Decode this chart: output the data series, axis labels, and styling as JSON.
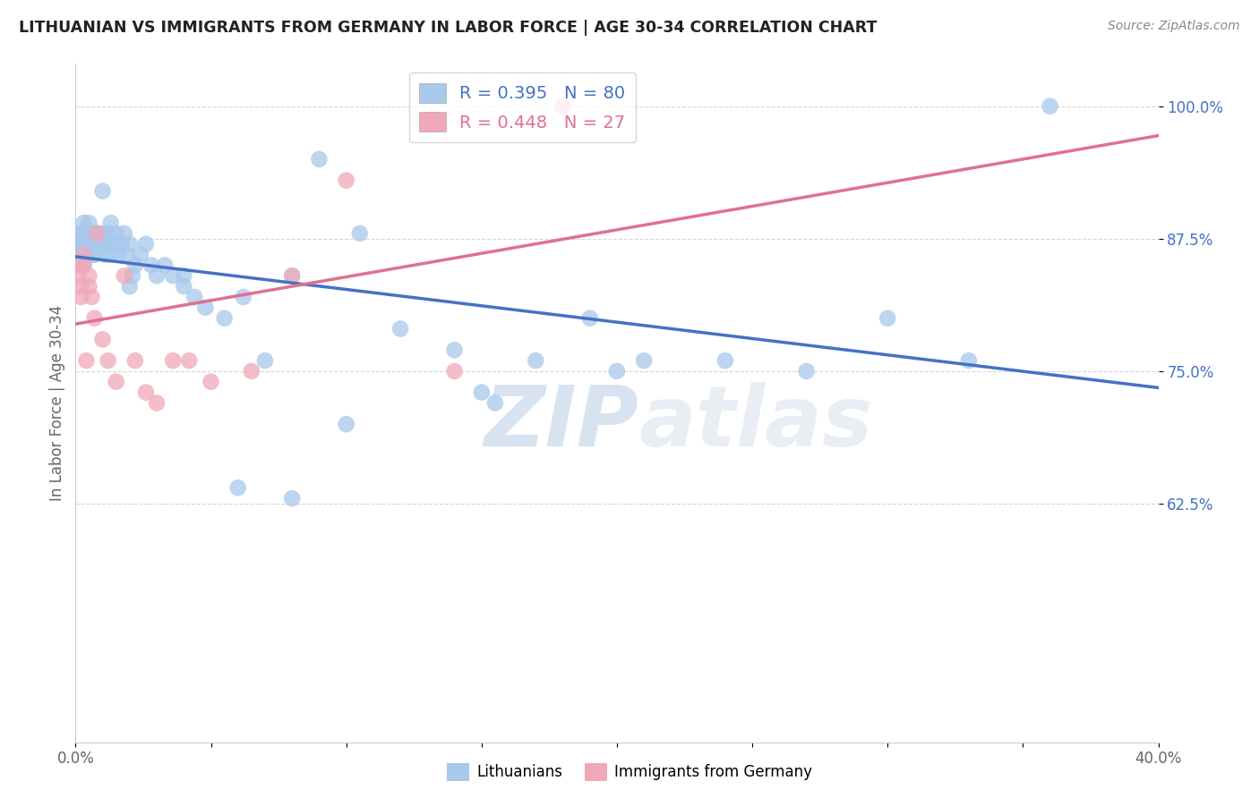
{
  "title": "LITHUANIAN VS IMMIGRANTS FROM GERMANY IN LABOR FORCE | AGE 30-34 CORRELATION CHART",
  "source": "Source: ZipAtlas.com",
  "ylabel": "In Labor Force | Age 30-34",
  "xlim": [
    0.0,
    0.4
  ],
  "ylim": [
    0.4,
    1.04
  ],
  "yticks": [
    0.625,
    0.75,
    0.875,
    1.0
  ],
  "yticklabels": [
    "62.5%",
    "75.0%",
    "87.5%",
    "100.0%"
  ],
  "xtick_show": [
    0.0,
    0.4
  ],
  "xticklabels_show": [
    "0.0%",
    "40.0%"
  ],
  "blue_color": "#A8C8EC",
  "pink_color": "#F0A8B8",
  "blue_line_color": "#4472C4",
  "pink_line_color": "#E07090",
  "r_blue": 0.395,
  "n_blue": 80,
  "r_pink": 0.448,
  "n_pink": 27,
  "legend_label_blue": "Lithuanians",
  "legend_label_pink": "Immigrants from Germany",
  "watermark_zip": "ZIP",
  "watermark_atlas": "atlas",
  "blue_x": [
    0.001,
    0.001,
    0.001,
    0.001,
    0.002,
    0.002,
    0.002,
    0.002,
    0.003,
    0.003,
    0.003,
    0.003,
    0.003,
    0.004,
    0.004,
    0.004,
    0.005,
    0.005,
    0.005,
    0.005,
    0.006,
    0.006,
    0.006,
    0.007,
    0.007,
    0.007,
    0.008,
    0.008,
    0.009,
    0.009,
    0.01,
    0.01,
    0.011,
    0.011,
    0.012,
    0.012,
    0.013,
    0.013,
    0.014,
    0.015,
    0.016,
    0.017,
    0.018,
    0.019,
    0.02,
    0.021,
    0.022,
    0.024,
    0.026,
    0.028,
    0.03,
    0.033,
    0.036,
    0.04,
    0.044,
    0.048,
    0.055,
    0.062,
    0.07,
    0.08,
    0.09,
    0.105,
    0.12,
    0.14,
    0.155,
    0.17,
    0.19,
    0.21,
    0.24,
    0.27,
    0.3,
    0.33,
    0.36,
    0.2,
    0.15,
    0.1,
    0.08,
    0.06,
    0.04,
    0.02
  ],
  "blue_y": [
    0.88,
    0.87,
    0.86,
    0.85,
    0.88,
    0.87,
    0.86,
    0.85,
    0.89,
    0.88,
    0.87,
    0.86,
    0.85,
    0.88,
    0.87,
    0.86,
    0.89,
    0.88,
    0.87,
    0.86,
    0.88,
    0.87,
    0.86,
    0.88,
    0.87,
    0.86,
    0.88,
    0.87,
    0.88,
    0.87,
    0.92,
    0.87,
    0.88,
    0.86,
    0.88,
    0.87,
    0.89,
    0.86,
    0.87,
    0.88,
    0.86,
    0.87,
    0.88,
    0.86,
    0.87,
    0.84,
    0.85,
    0.86,
    0.87,
    0.85,
    0.84,
    0.85,
    0.84,
    0.83,
    0.82,
    0.81,
    0.8,
    0.82,
    0.76,
    0.84,
    0.95,
    0.88,
    0.79,
    0.77,
    0.72,
    0.76,
    0.8,
    0.76,
    0.76,
    0.75,
    0.8,
    0.76,
    1.0,
    0.75,
    0.73,
    0.7,
    0.63,
    0.64,
    0.84,
    0.83
  ],
  "pink_x": [
    0.001,
    0.001,
    0.002,
    0.002,
    0.003,
    0.003,
    0.004,
    0.005,
    0.005,
    0.006,
    0.007,
    0.008,
    0.01,
    0.012,
    0.015,
    0.018,
    0.022,
    0.026,
    0.03,
    0.036,
    0.042,
    0.05,
    0.065,
    0.08,
    0.1,
    0.14,
    0.18
  ],
  "pink_y": [
    0.85,
    0.84,
    0.83,
    0.82,
    0.86,
    0.85,
    0.76,
    0.84,
    0.83,
    0.82,
    0.8,
    0.88,
    0.78,
    0.76,
    0.74,
    0.84,
    0.76,
    0.73,
    0.72,
    0.76,
    0.76,
    0.74,
    0.75,
    0.84,
    0.93,
    0.75,
    1.0
  ]
}
